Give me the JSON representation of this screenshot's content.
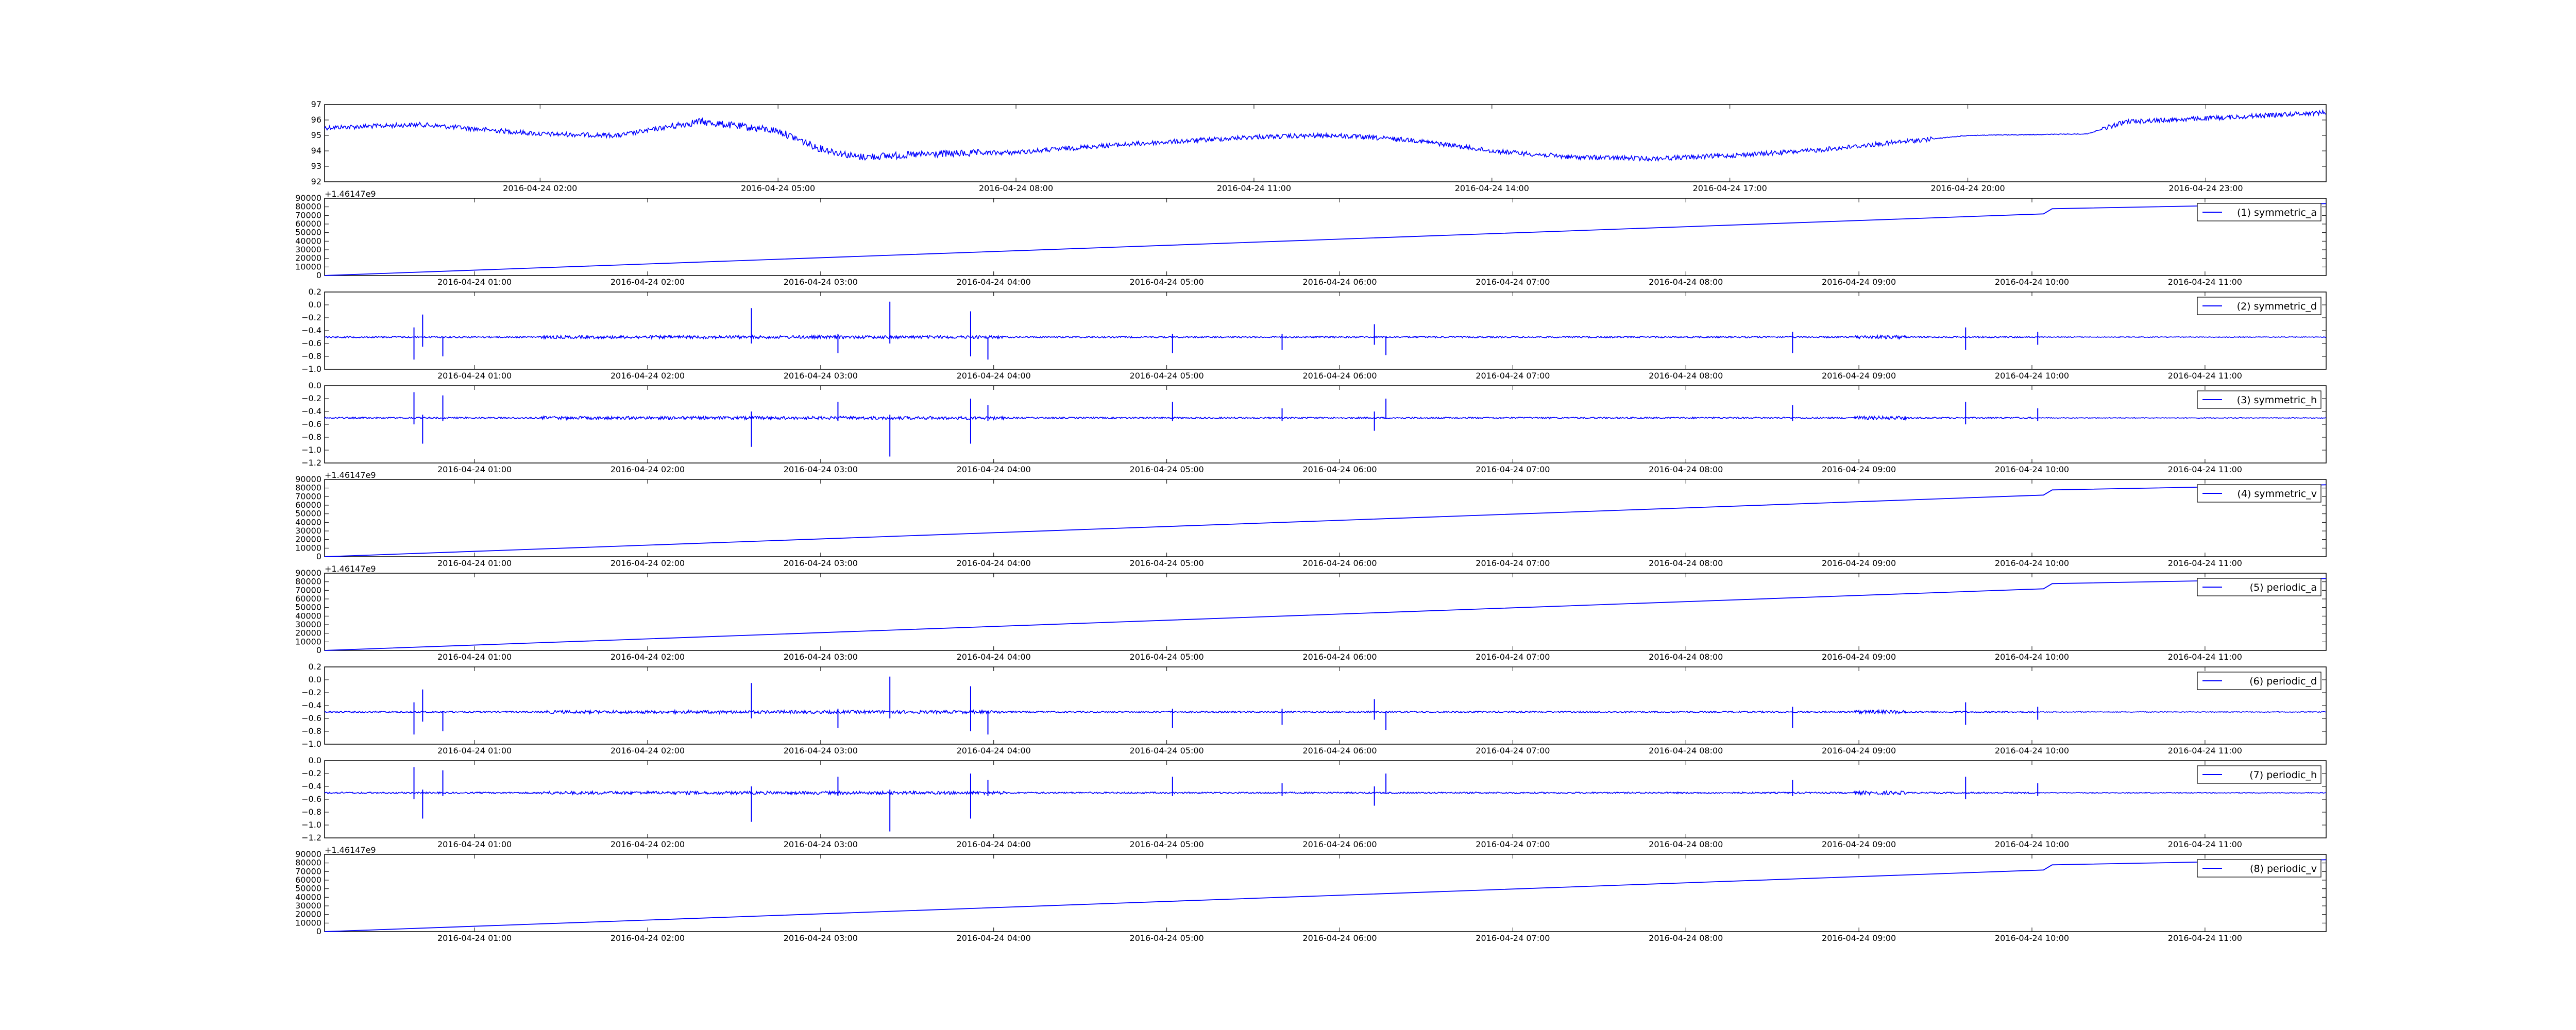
{
  "figure": {
    "line_color": "#0000ff",
    "axes_color": "#000000",
    "background": "#ffffff"
  },
  "chart_data": [
    {
      "type": "line",
      "x_type": "time",
      "xlim": [
        "2016-04-23T23:17:00",
        "2016-04-25T00:31:00"
      ],
      "x_ticks": [
        "2016-04-24T02:00",
        "2016-04-24T05:00",
        "2016-04-24T08:00",
        "2016-04-24T11:00",
        "2016-04-24T14:00",
        "2016-04-24T17:00",
        "2016-04-24T20:00",
        "2016-04-24T23:00"
      ],
      "x_tick_labels": [
        "2016-04-24 02:00",
        "2016-04-24 05:00",
        "2016-04-24 08:00",
        "2016-04-24 11:00",
        "2016-04-24 14:00",
        "2016-04-24 17:00",
        "2016-04-24 20:00",
        "2016-04-24 23:00"
      ],
      "ylim": [
        92,
        97
      ],
      "y_ticks": [
        92,
        93,
        94,
        95,
        96,
        97
      ],
      "y_tick_labels": [
        "92",
        "93",
        "94",
        "95",
        "96",
        "97"
      ],
      "series": [
        {
          "values": [
            [
              "2016-04-23T23:17:00",
              95.5
            ],
            [
              "2016-04-24T00:30:00",
              95.7
            ],
            [
              "2016-04-24T02:00:00",
              95.1
            ],
            [
              "2016-04-24T03:00:00",
              95.0
            ],
            [
              "2016-04-24T04:00:00",
              95.9
            ],
            [
              "2016-04-24T05:00:00",
              95.3
            ],
            [
              "2016-04-24T05:30:00",
              94.2
            ],
            [
              "2016-04-24T06:00:00",
              93.6
            ],
            [
              "2016-04-24T07:00:00",
              93.8
            ],
            [
              "2016-04-24T08:00:00",
              93.9
            ],
            [
              "2016-04-24T09:00:00",
              94.3
            ],
            [
              "2016-04-24T10:00:00",
              94.6
            ],
            [
              "2016-04-24T11:00:00",
              94.9
            ],
            [
              "2016-04-24T12:00:00",
              95.0
            ],
            [
              "2016-04-24T13:00:00",
              94.7
            ],
            [
              "2016-04-24T14:00:00",
              94.0
            ],
            [
              "2016-04-24T15:00:00",
              93.6
            ],
            [
              "2016-04-24T16:00:00",
              93.5
            ],
            [
              "2016-04-24T17:00:00",
              93.7
            ],
            [
              "2016-04-24T18:00:00",
              94.0
            ],
            [
              "2016-04-24T19:00:00",
              94.5
            ],
            [
              "2016-04-24T20:00:00",
              95.0
            ],
            [
              "2016-04-24T21:30:00",
              95.1
            ],
            [
              "2016-04-24T22:00:00",
              95.9
            ],
            [
              "2016-04-24T23:00:00",
              96.1
            ],
            [
              "2016-04-25T00:31:00",
              96.5
            ]
          ]
        }
      ]
    },
    {
      "type": "line",
      "x_type": "time",
      "xlim": [
        "2016-04-24T00:08:00",
        "2016-04-24T11:42:00"
      ],
      "ylim": [
        0,
        90000
      ],
      "y_ticks": [
        0,
        10000,
        20000,
        30000,
        40000,
        50000,
        60000,
        70000,
        80000,
        90000
      ],
      "y_tick_labels": [
        "0",
        "10000",
        "20000",
        "30000",
        "40000",
        "50000",
        "60000",
        "70000",
        "80000",
        "90000"
      ],
      "x_offset_text": "+1.46147e9",
      "legend_position": "upper right",
      "series": [
        {
          "name": "(1) symmetric_a",
          "values": [
            [
              "2016-04-24T00:08:00",
              0
            ],
            [
              "2016-04-24T10:04:00",
              71800
            ],
            [
              "2016-04-24T10:07:00",
              77800
            ],
            [
              "2016-04-24T11:42:00",
              83800
            ]
          ]
        }
      ]
    },
    {
      "type": "line",
      "x_type": "time",
      "xlim": [
        "2016-04-24T00:08:00",
        "2016-04-24T11:42:00"
      ],
      "ylim": [
        -1.0,
        0.2
      ],
      "y_ticks": [
        -1.0,
        -0.8,
        -0.6,
        -0.4,
        -0.2,
        0.0,
        0.2
      ],
      "y_tick_labels": [
        "−1.0",
        "−0.8",
        "−0.6",
        "−0.4",
        "−0.2",
        "0.0",
        "0.2"
      ],
      "baseline": -0.5,
      "legend_position": "upper right",
      "series": [
        {
          "name": "(2) symmetric_d",
          "spikes": [
            [
              "2016-04-24T00:39:00",
              -0.85,
              -0.35
            ],
            [
              "2016-04-24T00:42:00",
              -0.65,
              -0.15
            ],
            [
              "2016-04-24T00:49:00",
              -0.8,
              -0.5
            ],
            [
              "2016-04-24T02:36:00",
              -0.6,
              -0.05
            ],
            [
              "2016-04-24T03:06:00",
              -0.75,
              -0.45
            ],
            [
              "2016-04-24T03:24:00",
              -0.6,
              0.05
            ],
            [
              "2016-04-24T03:52:00",
              -0.8,
              -0.1
            ],
            [
              "2016-04-24T03:58:00",
              -0.85,
              -0.5
            ],
            [
              "2016-04-24T05:02:00",
              -0.75,
              -0.45
            ],
            [
              "2016-04-24T05:40:00",
              -0.7,
              -0.45
            ],
            [
              "2016-04-24T06:12:00",
              -0.62,
              -0.3
            ],
            [
              "2016-04-24T06:16:00",
              -0.78,
              -0.5
            ],
            [
              "2016-04-24T08:37:00",
              -0.75,
              -0.42
            ],
            [
              "2016-04-24T09:37:00",
              -0.7,
              -0.35
            ],
            [
              "2016-04-24T10:02:00",
              -0.62,
              -0.42
            ]
          ]
        }
      ]
    },
    {
      "type": "line",
      "x_type": "time",
      "xlim": [
        "2016-04-24T00:08:00",
        "2016-04-24T11:42:00"
      ],
      "ylim": [
        -1.2,
        0.0
      ],
      "y_ticks": [
        -1.2,
        -1.0,
        -0.8,
        -0.6,
        -0.4,
        -0.2,
        0.0
      ],
      "y_tick_labels": [
        "−1.2",
        "−1.0",
        "−0.8",
        "−0.6",
        "−0.4",
        "−0.2",
        "0.0"
      ],
      "baseline": -0.5,
      "legend_position": "upper right",
      "series": [
        {
          "name": "(3) symmetric_h",
          "spikes": [
            [
              "2016-04-24T00:39:00",
              -0.6,
              -0.1
            ],
            [
              "2016-04-24T00:42:00",
              -0.9,
              -0.45
            ],
            [
              "2016-04-24T00:49:00",
              -0.55,
              -0.15
            ],
            [
              "2016-04-24T02:36:00",
              -0.95,
              -0.4
            ],
            [
              "2016-04-24T03:06:00",
              -0.55,
              -0.25
            ],
            [
              "2016-04-24T03:24:00",
              -1.1,
              -0.45
            ],
            [
              "2016-04-24T03:52:00",
              -0.9,
              -0.2
            ],
            [
              "2016-04-24T03:58:00",
              -0.55,
              -0.3
            ],
            [
              "2016-04-24T05:02:00",
              -0.55,
              -0.25
            ],
            [
              "2016-04-24T05:40:00",
              -0.55,
              -0.35
            ],
            [
              "2016-04-24T06:12:00",
              -0.7,
              -0.4
            ],
            [
              "2016-04-24T06:16:00",
              -0.5,
              -0.2
            ],
            [
              "2016-04-24T08:37:00",
              -0.55,
              -0.3
            ],
            [
              "2016-04-24T09:37:00",
              -0.6,
              -0.25
            ],
            [
              "2016-04-24T10:02:00",
              -0.55,
              -0.35
            ]
          ]
        }
      ]
    },
    {
      "type": "line",
      "x_type": "time",
      "xlim": [
        "2016-04-24T00:08:00",
        "2016-04-24T11:42:00"
      ],
      "ylim": [
        0,
        90000
      ],
      "y_ticks": [
        0,
        10000,
        20000,
        30000,
        40000,
        50000,
        60000,
        70000,
        80000,
        90000
      ],
      "y_tick_labels": [
        "0",
        "10000",
        "20000",
        "30000",
        "40000",
        "50000",
        "60000",
        "70000",
        "80000",
        "90000"
      ],
      "x_offset_text": "+1.46147e9",
      "legend_position": "upper right",
      "series": [
        {
          "name": "(4) symmetric_v",
          "values": [
            [
              "2016-04-24T00:08:00",
              0
            ],
            [
              "2016-04-24T10:04:00",
              71800
            ],
            [
              "2016-04-24T10:07:00",
              77800
            ],
            [
              "2016-04-24T11:42:00",
              83800
            ]
          ]
        }
      ]
    },
    {
      "type": "line",
      "x_type": "time",
      "xlim": [
        "2016-04-24T00:08:00",
        "2016-04-24T11:42:00"
      ],
      "ylim": [
        0,
        90000
      ],
      "y_ticks": [
        0,
        10000,
        20000,
        30000,
        40000,
        50000,
        60000,
        70000,
        80000,
        90000
      ],
      "y_tick_labels": [
        "0",
        "10000",
        "20000",
        "30000",
        "40000",
        "50000",
        "60000",
        "70000",
        "80000",
        "90000"
      ],
      "x_offset_text": "+1.46147e9",
      "legend_position": "upper right",
      "series": [
        {
          "name": "(5) periodic_a",
          "values": [
            [
              "2016-04-24T00:08:00",
              0
            ],
            [
              "2016-04-24T10:04:00",
              71800
            ],
            [
              "2016-04-24T10:07:00",
              77800
            ],
            [
              "2016-04-24T11:42:00",
              83800
            ]
          ]
        }
      ]
    },
    {
      "type": "line",
      "x_type": "time",
      "xlim": [
        "2016-04-24T00:08:00",
        "2016-04-24T11:42:00"
      ],
      "ylim": [
        -1.0,
        0.2
      ],
      "y_ticks": [
        -1.0,
        -0.8,
        -0.6,
        -0.4,
        -0.2,
        0.0,
        0.2
      ],
      "y_tick_labels": [
        "−1.0",
        "−0.8",
        "−0.6",
        "−0.4",
        "−0.2",
        "0.0",
        "0.2"
      ],
      "baseline": -0.5,
      "legend_position": "upper right",
      "series": [
        {
          "name": "(6) periodic_d",
          "spikes": [
            [
              "2016-04-24T00:39:00",
              -0.85,
              -0.35
            ],
            [
              "2016-04-24T00:42:00",
              -0.65,
              -0.15
            ],
            [
              "2016-04-24T00:49:00",
              -0.8,
              -0.5
            ],
            [
              "2016-04-24T02:36:00",
              -0.6,
              -0.05
            ],
            [
              "2016-04-24T03:06:00",
              -0.75,
              -0.45
            ],
            [
              "2016-04-24T03:24:00",
              -0.6,
              0.05
            ],
            [
              "2016-04-24T03:52:00",
              -0.8,
              -0.1
            ],
            [
              "2016-04-24T03:58:00",
              -0.85,
              -0.5
            ],
            [
              "2016-04-24T05:02:00",
              -0.75,
              -0.45
            ],
            [
              "2016-04-24T05:40:00",
              -0.7,
              -0.45
            ],
            [
              "2016-04-24T06:12:00",
              -0.62,
              -0.3
            ],
            [
              "2016-04-24T06:16:00",
              -0.78,
              -0.5
            ],
            [
              "2016-04-24T08:37:00",
              -0.75,
              -0.42
            ],
            [
              "2016-04-24T09:37:00",
              -0.7,
              -0.35
            ],
            [
              "2016-04-24T10:02:00",
              -0.62,
              -0.42
            ]
          ]
        }
      ]
    },
    {
      "type": "line",
      "x_type": "time",
      "xlim": [
        "2016-04-24T00:08:00",
        "2016-04-24T11:42:00"
      ],
      "ylim": [
        -1.2,
        0.0
      ],
      "y_ticks": [
        -1.2,
        -1.0,
        -0.8,
        -0.6,
        -0.4,
        -0.2,
        0.0
      ],
      "y_tick_labels": [
        "−1.2",
        "−1.0",
        "−0.8",
        "−0.6",
        "−0.4",
        "−0.2",
        "0.0"
      ],
      "baseline": -0.5,
      "legend_position": "upper right",
      "series": [
        {
          "name": "(7) periodic_h",
          "spikes": [
            [
              "2016-04-24T00:39:00",
              -0.6,
              -0.1
            ],
            [
              "2016-04-24T00:42:00",
              -0.9,
              -0.45
            ],
            [
              "2016-04-24T00:49:00",
              -0.55,
              -0.15
            ],
            [
              "2016-04-24T02:36:00",
              -0.95,
              -0.4
            ],
            [
              "2016-04-24T03:06:00",
              -0.55,
              -0.25
            ],
            [
              "2016-04-24T03:24:00",
              -1.1,
              -0.45
            ],
            [
              "2016-04-24T03:52:00",
              -0.9,
              -0.2
            ],
            [
              "2016-04-24T03:58:00",
              -0.55,
              -0.3
            ],
            [
              "2016-04-24T05:02:00",
              -0.55,
              -0.25
            ],
            [
              "2016-04-24T05:40:00",
              -0.55,
              -0.35
            ],
            [
              "2016-04-24T06:12:00",
              -0.7,
              -0.4
            ],
            [
              "2016-04-24T06:16:00",
              -0.5,
              -0.2
            ],
            [
              "2016-04-24T08:37:00",
              -0.55,
              -0.3
            ],
            [
              "2016-04-24T09:37:00",
              -0.6,
              -0.25
            ],
            [
              "2016-04-24T10:02:00",
              -0.55,
              -0.35
            ]
          ]
        }
      ]
    },
    {
      "type": "line",
      "x_type": "time",
      "xlim": [
        "2016-04-24T00:08:00",
        "2016-04-24T11:42:00"
      ],
      "ylim": [
        0,
        90000
      ],
      "y_ticks": [
        0,
        10000,
        20000,
        30000,
        40000,
        50000,
        60000,
        70000,
        80000,
        90000
      ],
      "y_tick_labels": [
        "0",
        "10000",
        "20000",
        "30000",
        "40000",
        "50000",
        "60000",
        "70000",
        "80000",
        "90000"
      ],
      "x_offset_text": "+1.46147e9",
      "legend_position": "upper right",
      "series": [
        {
          "name": "(8) periodic_v",
          "values": [
            [
              "2016-04-24T00:08:00",
              0
            ],
            [
              "2016-04-24T10:04:00",
              71800
            ],
            [
              "2016-04-24T10:07:00",
              77800
            ],
            [
              "2016-04-24T11:42:00",
              83800
            ]
          ]
        }
      ]
    }
  ],
  "shared_x_axis": {
    "x_ticks": [
      "2016-04-24T01:00",
      "2016-04-24T02:00",
      "2016-04-24T03:00",
      "2016-04-24T04:00",
      "2016-04-24T05:00",
      "2016-04-24T06:00",
      "2016-04-24T07:00",
      "2016-04-24T08:00",
      "2016-04-24T09:00",
      "2016-04-24T10:00",
      "2016-04-24T11:00"
    ],
    "x_tick_labels": [
      "2016-04-24 01:00",
      "2016-04-24 02:00",
      "2016-04-24 03:00",
      "2016-04-24 04:00",
      "2016-04-24 05:00",
      "2016-04-24 06:00",
      "2016-04-24 07:00",
      "2016-04-24 08:00",
      "2016-04-24 09:00",
      "2016-04-24 10:00",
      "2016-04-24 11:00"
    ]
  }
}
